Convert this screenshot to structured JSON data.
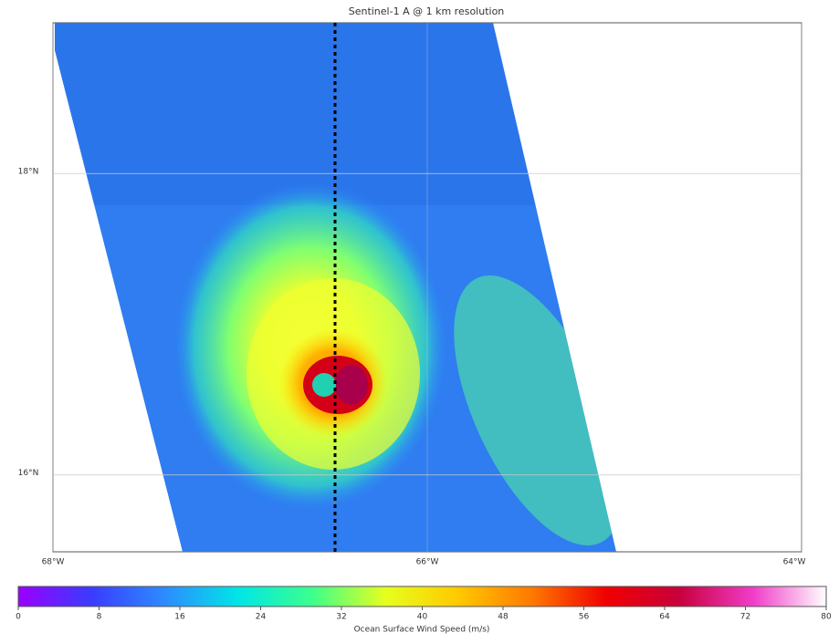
{
  "chart_data": {
    "type": "map",
    "title": "Sentinel-1 A @ 1 km resolution",
    "xlim": [
      -68,
      -64
    ],
    "xticks": [
      {
        "value": -68,
        "label": "68°W"
      },
      {
        "value": -66,
        "label": "66°W"
      },
      {
        "value": -64,
        "label": "64°W"
      }
    ],
    "ylim": [
      15.49,
      19.0
    ],
    "yticks": [
      {
        "value": 18,
        "label": "18°N"
      },
      {
        "value": 16,
        "label": "16°N"
      }
    ],
    "grid": true,
    "colorbar": {
      "label": "Ocean Surface Wind Speed (m/s)",
      "lim": [
        0,
        80
      ],
      "ticks": [
        0,
        8,
        16,
        24,
        32,
        40,
        48,
        56,
        64,
        72,
        80
      ],
      "colors": [
        "#9a00ff",
        "#3a3cff",
        "#2c8cff",
        "#00e6e6",
        "#3cff8c",
        "#e6ff1e",
        "#ffc800",
        "#ff7800",
        "#f00000",
        "#c8003c",
        "#f03cc8",
        "#ffffff"
      ]
    }
  }
}
